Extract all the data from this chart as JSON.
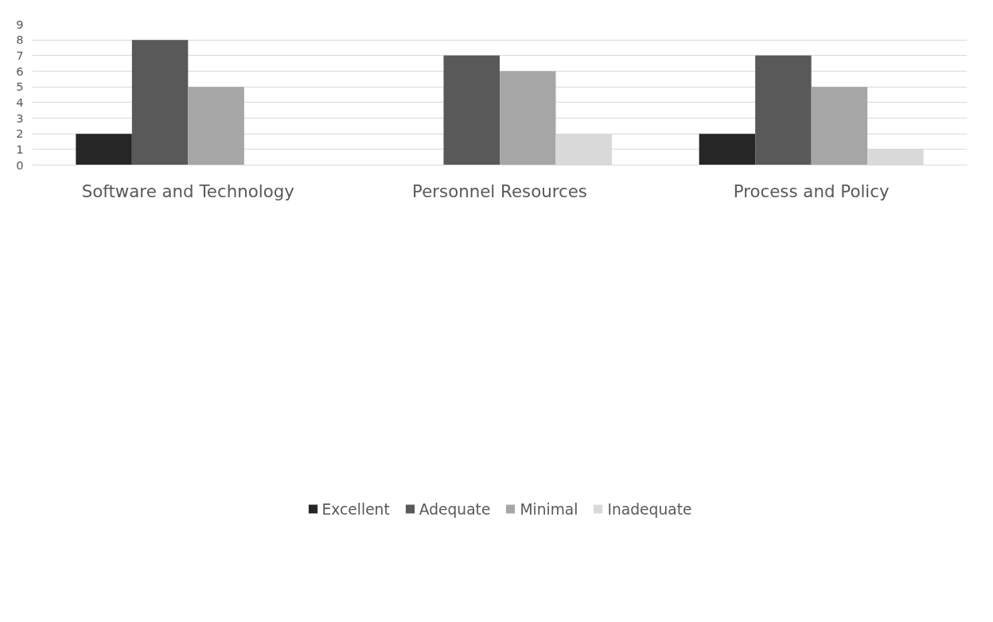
{
  "chart_data": {
    "type": "bar",
    "categories": [
      "Software and Technology",
      "Personnel Resources",
      "Process and Policy"
    ],
    "series": [
      {
        "name": "Excellent",
        "color": "#262626",
        "values": [
          2,
          0,
          2
        ]
      },
      {
        "name": "Adequate",
        "color": "#595959",
        "values": [
          8,
          7,
          7
        ]
      },
      {
        "name": "Minimal",
        "color": "#a6a6a6",
        "values": [
          5,
          6,
          5
        ]
      },
      {
        "name": "Inadequate",
        "color": "#d9d9d9",
        "values": [
          0,
          2,
          1
        ]
      }
    ],
    "ylim": [
      0,
      9
    ],
    "yticks": [
      0,
      1,
      2,
      3,
      4,
      5,
      6,
      7,
      8,
      9
    ],
    "grid": "y",
    "legend": "bottom"
  }
}
